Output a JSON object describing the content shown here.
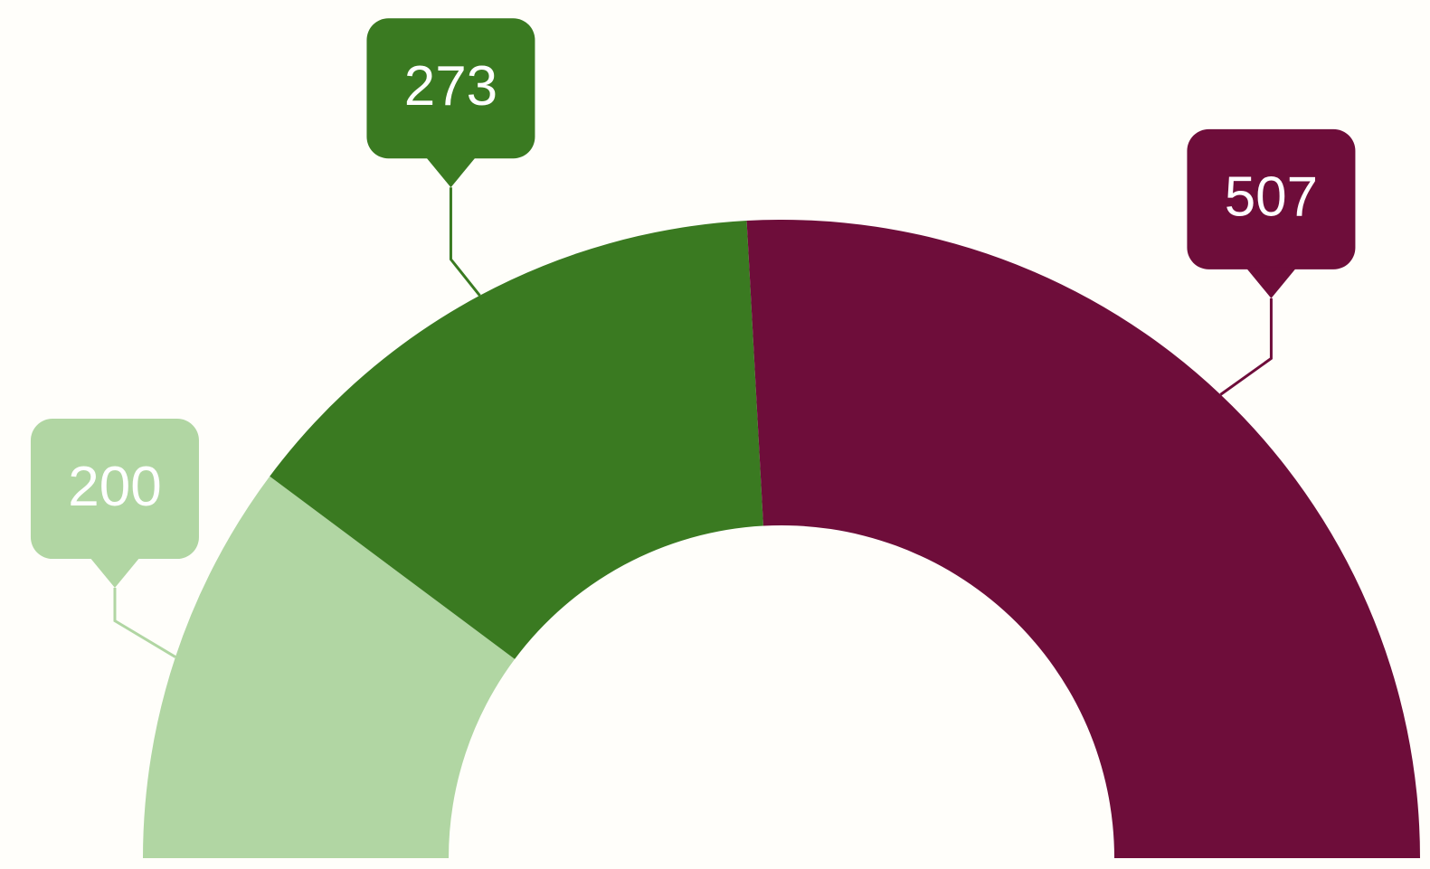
{
  "chart_data": {
    "type": "semi-donut",
    "values": [
      200,
      273,
      507
    ],
    "colors": [
      "#b1d6a3",
      "#3a7a21",
      "#6e0d3a"
    ]
  }
}
